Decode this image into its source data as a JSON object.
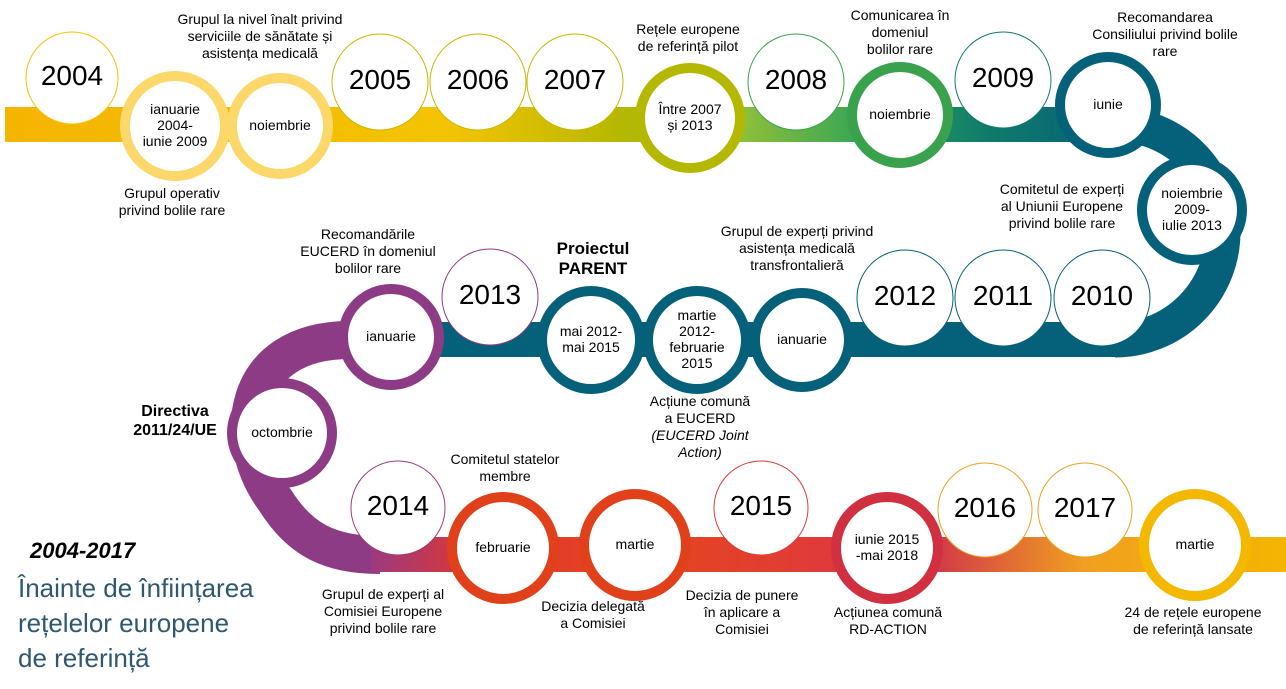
{
  "header": {
    "range": "2004-2017",
    "title_lines": [
      "Înainte de înființarea",
      "rețelelor europene",
      "de referință"
    ]
  },
  "nodes": [
    {
      "label": [
        "2004"
      ]
    },
    {
      "label": [
        "ianuarie",
        "2004-",
        "iunie 2009"
      ]
    },
    {
      "label": [
        "noiembrie"
      ]
    },
    {
      "label": [
        "2005"
      ]
    },
    {
      "label": [
        "2006"
      ]
    },
    {
      "label": [
        "2007"
      ]
    },
    {
      "label": [
        "Între 2007",
        "și 2013"
      ]
    },
    {
      "label": [
        "2008"
      ]
    },
    {
      "label": [
        "noiembrie"
      ]
    },
    {
      "label": [
        "2009"
      ]
    },
    {
      "label": [
        "iunie"
      ]
    },
    {
      "label": [
        "noiembrie",
        "2009-",
        "iulie 2013"
      ]
    },
    {
      "label": [
        "2010"
      ]
    },
    {
      "label": [
        "2011"
      ]
    },
    {
      "label": [
        "2012"
      ]
    },
    {
      "label": [
        "ianuarie"
      ]
    },
    {
      "label": [
        "martie",
        "2012-",
        "februarie",
        "2015"
      ]
    },
    {
      "label": [
        "mai 2012-",
        "mai 2015"
      ]
    },
    {
      "label": [
        "2013"
      ]
    },
    {
      "label": [
        "ianuarie"
      ]
    },
    {
      "label": [
        "octombrie"
      ]
    },
    {
      "label": [
        "2014"
      ]
    },
    {
      "label": [
        "februarie"
      ]
    },
    {
      "label": [
        "martie"
      ]
    },
    {
      "label": [
        "2015"
      ]
    },
    {
      "label": [
        "iunie 2015",
        "-mai 2018"
      ]
    },
    {
      "label": [
        "2016"
      ]
    },
    {
      "label": [
        "2017"
      ]
    },
    {
      "label": [
        "martie"
      ]
    }
  ],
  "captions": [
    {
      "lines": [
        "Grupul la nivel înalt privind",
        "serviciile de sănătate și",
        "asistența medicală"
      ]
    },
    {
      "lines": [
        "Grupul operativ",
        "privind bolile rare"
      ]
    },
    {
      "lines": [
        "Rețele europene",
        "de referință pilot"
      ]
    },
    {
      "lines": [
        "Comunicarea în",
        "domeniul",
        "bolilor rare"
      ]
    },
    {
      "lines": [
        "Recomandarea",
        "Consiliului privind bolile",
        "rare"
      ]
    },
    {
      "lines": [
        "Comitetul de experți",
        "al Uniunii Europene",
        "privind bolile rare"
      ]
    },
    {
      "lines": [
        "Grupul de experți privind",
        "asistența medicală",
        "transfrontalieră"
      ]
    },
    {
      "lines": [
        "Proiectul",
        "PARENT"
      ]
    },
    {
      "lines": [
        "Recomandările",
        "EUCERD în domeniul",
        "bolilor rare"
      ]
    },
    {
      "lines": [
        "Acțiune comună",
        "a EUCERD",
        "(EUCERD Joint",
        "Action)"
      ]
    },
    {
      "lines": [
        "Directiva",
        "2011/24/UE"
      ]
    },
    {
      "lines": [
        "Comitetul statelor",
        "membre"
      ]
    },
    {
      "lines": [
        "Grupul de experți al",
        "Comisiei Europene",
        "privind bolile rare"
      ]
    },
    {
      "lines": [
        "Decizia delegată",
        "a Comisiei"
      ]
    },
    {
      "lines": [
        "Decizia de punere",
        "în aplicare a",
        "Comisiei"
      ]
    },
    {
      "lines": [
        "Acțiunea comună",
        "RD-ACTION"
      ]
    },
    {
      "lines": [
        "24 de rețele europene",
        "de referință lansate"
      ]
    }
  ]
}
